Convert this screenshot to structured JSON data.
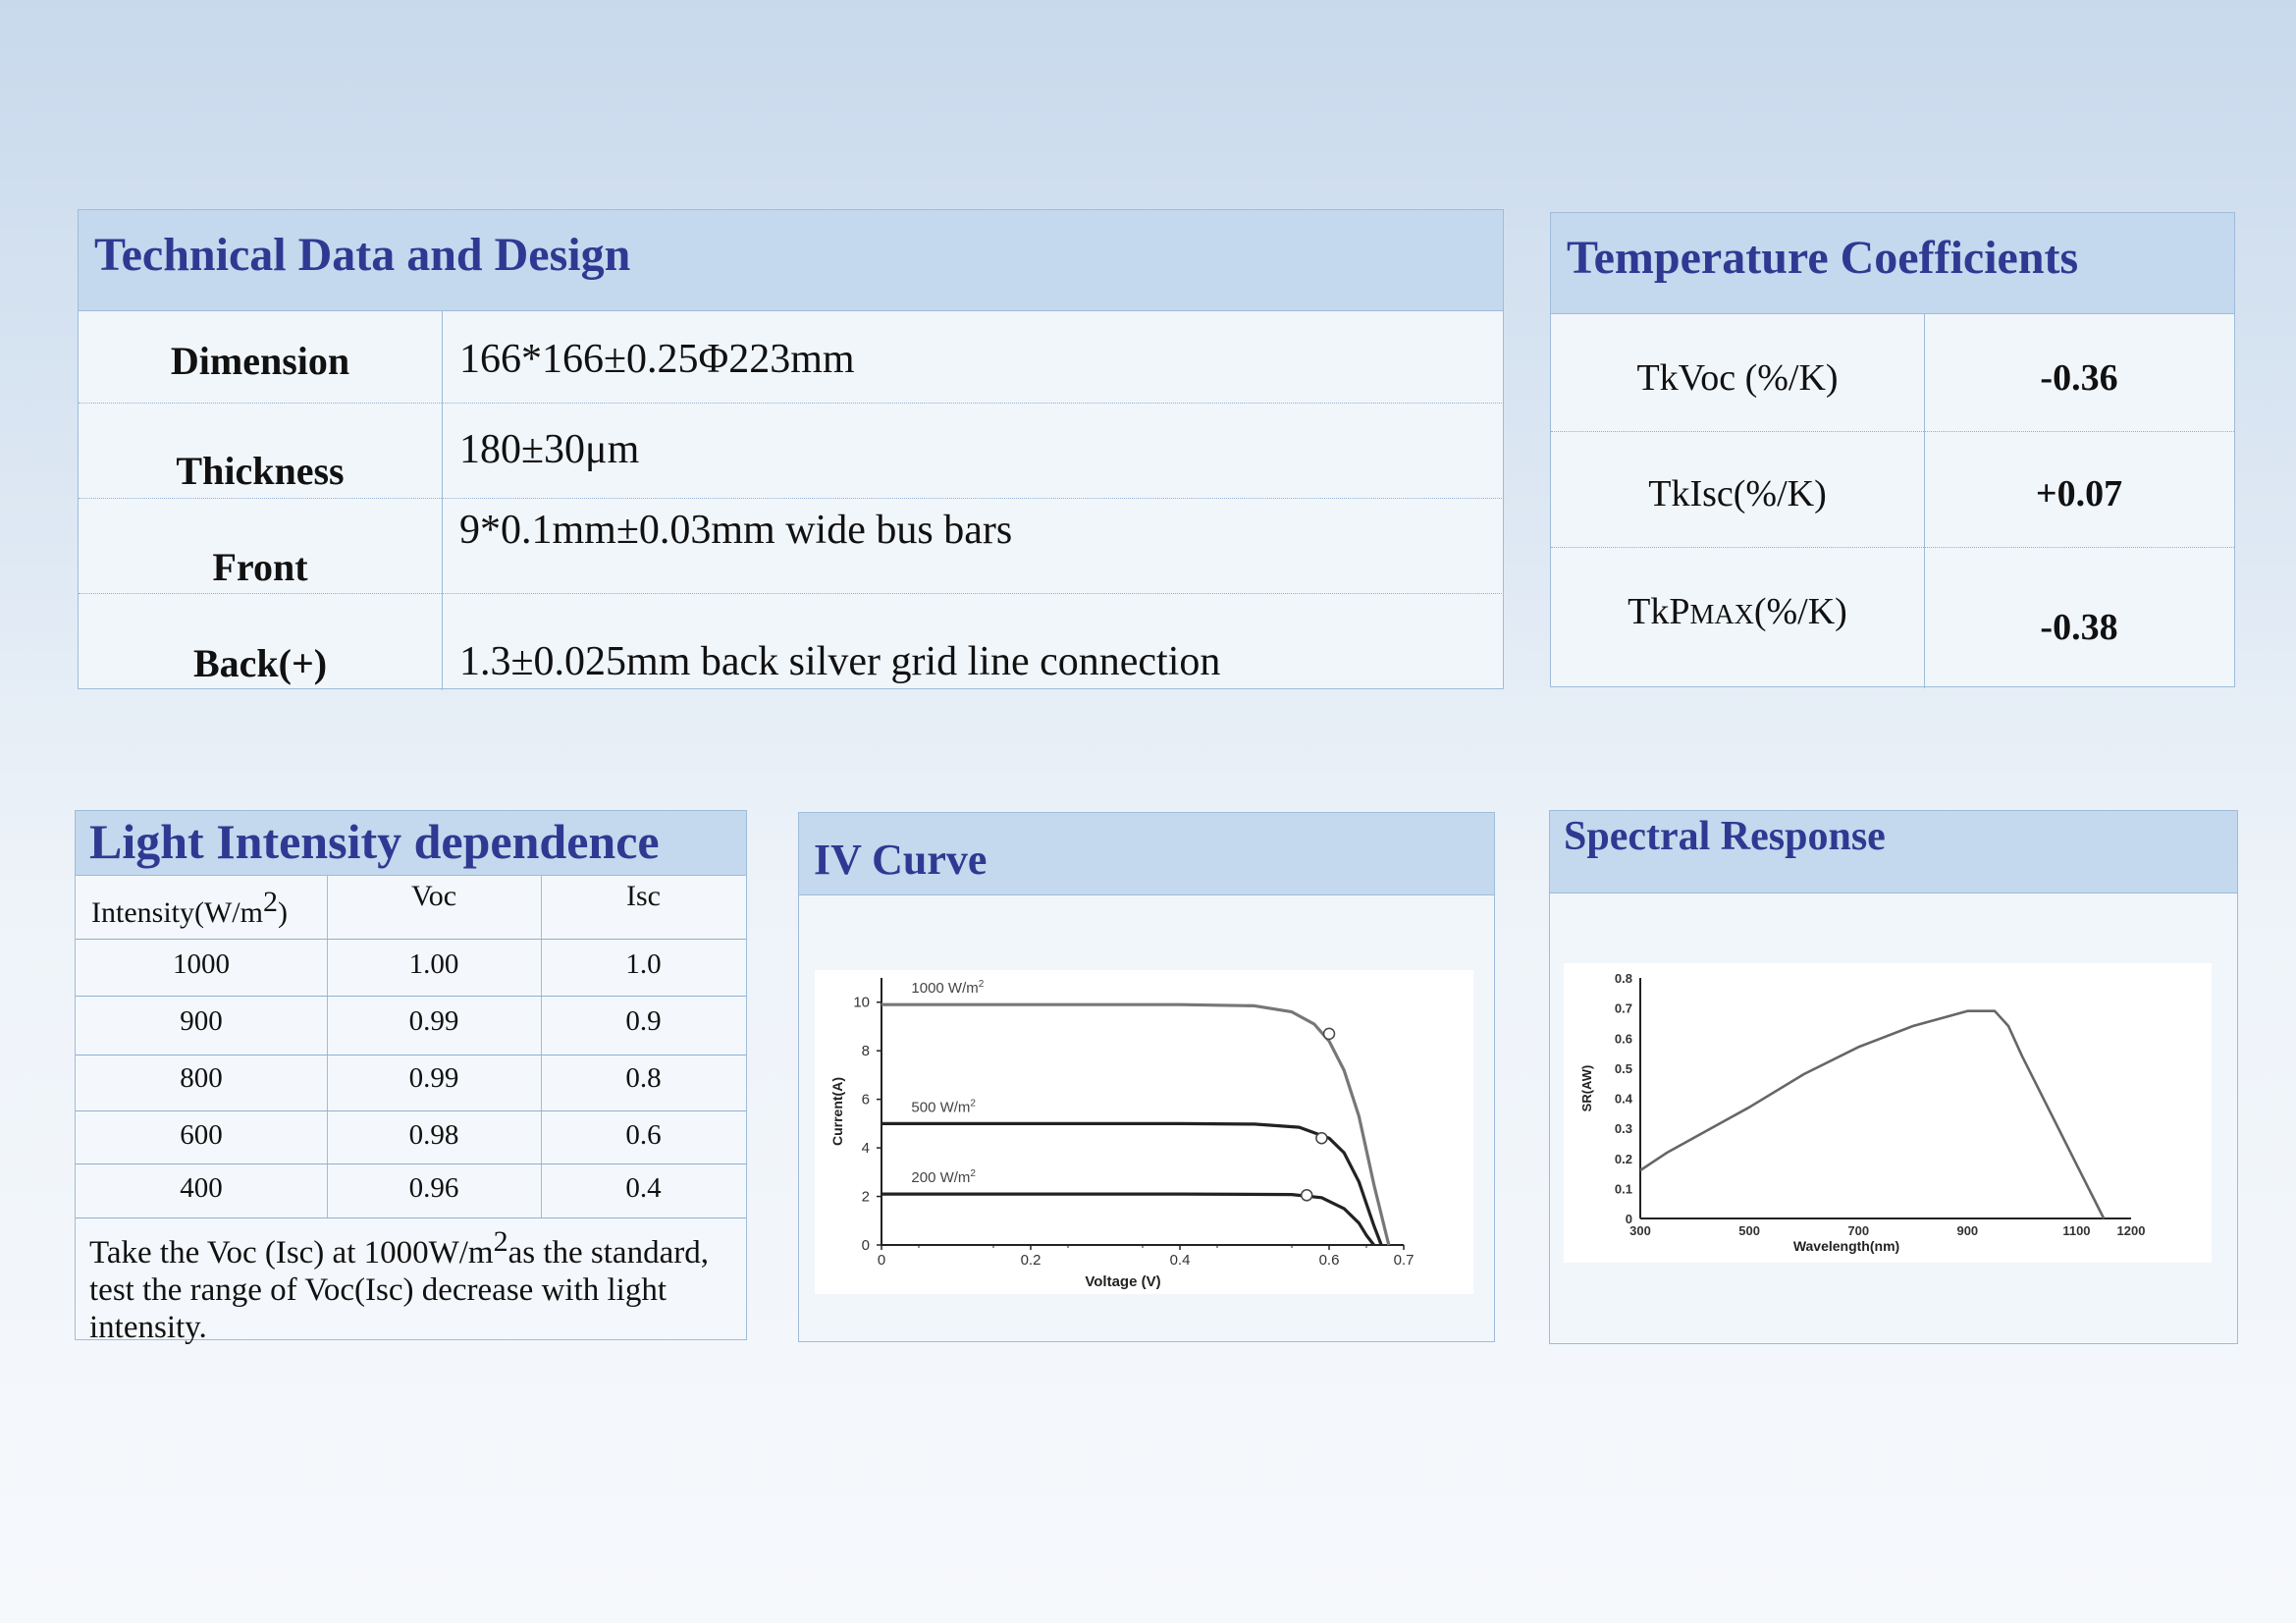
{
  "tech": {
    "title": "Technical Data and Design",
    "rows": [
      {
        "label": "Dimension",
        "value": "166*166±0.25Φ223mm"
      },
      {
        "label": "Thickness",
        "value": "180±30μm"
      },
      {
        "label": "Front",
        "value": "9*0.1mm±0.03mm wide bus bars"
      },
      {
        "label": "Back(+)",
        "value": "1.3±0.025mm back silver grid line connection"
      }
    ]
  },
  "temp": {
    "title": "Temperature Coefficients",
    "rows": [
      {
        "label": "TkVoc (%/K)",
        "value": "-0.36"
      },
      {
        "label": "TkIsc(%/K)",
        "value": "+0.07"
      },
      {
        "label_prefix": "TkP",
        "label_sub": "MAX",
        "label_suffix": "(%/K)",
        "value": "-0.38"
      }
    ]
  },
  "light": {
    "title": "Light Intensity dependence",
    "headers": {
      "intensity": "Intensity(W/m",
      "intensity_sup": "2",
      "intensity_end": ")",
      "voc": "Voc",
      "isc": "Isc"
    },
    "rows": [
      [
        "1000",
        "1.00",
        "1.0"
      ],
      [
        "900",
        "0.99",
        "0.9"
      ],
      [
        "800",
        "0.99",
        "0.8"
      ],
      [
        "600",
        "0.98",
        "0.6"
      ],
      [
        "400",
        "0.96",
        "0.4"
      ]
    ],
    "note_a": "Take the Voc (Isc) at 1000W/m",
    "note_sup": "2",
    "note_b": "as the standard, test the range of Voc(Isc) decrease with light intensity."
  },
  "iv": {
    "title": "IV Curve",
    "chart_data": {
      "type": "line",
      "xlabel": "Voltage  (V)",
      "ylabel": "Current(A)",
      "xlim": [
        0,
        0.7
      ],
      "ylim": [
        0,
        11
      ],
      "xticks": [
        {
          "v": 0,
          "label": "0"
        },
        {
          "v": 0.2,
          "label": "0.2"
        },
        {
          "v": 0.4,
          "label": "0.4"
        },
        {
          "v": 0.6,
          "label": "0.6"
        },
        {
          "v": 0.7,
          "label": "0.7"
        }
      ],
      "yticks": [
        0,
        2,
        4,
        6,
        8,
        10
      ],
      "series": [
        {
          "name": "1000  W/m",
          "name_sup": "2",
          "color": "#777777",
          "points": [
            [
              0,
              9.9
            ],
            [
              0.4,
              9.9
            ],
            [
              0.5,
              9.85
            ],
            [
              0.55,
              9.6
            ],
            [
              0.58,
              9.1
            ],
            [
              0.6,
              8.4
            ],
            [
              0.62,
              7.2
            ],
            [
              0.64,
              5.3
            ],
            [
              0.66,
              2.5
            ],
            [
              0.68,
              0
            ]
          ],
          "marker": [
            0.6,
            8.7
          ]
        },
        {
          "name": "500  W/m",
          "name_sup": "2",
          "color": "#222222",
          "points": [
            [
              0,
              5.0
            ],
            [
              0.4,
              5.0
            ],
            [
              0.5,
              4.98
            ],
            [
              0.56,
              4.85
            ],
            [
              0.6,
              4.4
            ],
            [
              0.62,
              3.8
            ],
            [
              0.64,
              2.6
            ],
            [
              0.66,
              0.8
            ],
            [
              0.67,
              0
            ]
          ],
          "marker": [
            0.59,
            4.4
          ]
        },
        {
          "name": "200  W/m",
          "name_sup": "2",
          "color": "#222222",
          "points": [
            [
              0,
              2.1
            ],
            [
              0.4,
              2.1
            ],
            [
              0.55,
              2.08
            ],
            [
              0.59,
              1.95
            ],
            [
              0.62,
              1.5
            ],
            [
              0.64,
              0.9
            ],
            [
              0.65,
              0.4
            ],
            [
              0.66,
              0
            ]
          ],
          "marker": [
            0.57,
            2.05
          ]
        }
      ]
    }
  },
  "spectral": {
    "title": "Spectral Response",
    "chart_data": {
      "type": "line",
      "xlabel": "Wavelength(nm)",
      "ylabel": "SR(AW)",
      "xlim": [
        300,
        1200
      ],
      "ylim": [
        0,
        0.8
      ],
      "xticks": [
        300,
        500,
        700,
        900,
        1100,
        1200
      ],
      "yticks": [
        "0",
        "0.1",
        "0.2",
        "0.3",
        "0.4",
        "0.5",
        "0.6",
        "0.7",
        "0.8"
      ],
      "series": [
        {
          "color": "#666666",
          "points": [
            [
              300,
              0.16
            ],
            [
              350,
              0.22
            ],
            [
              450,
              0.32
            ],
            [
              500,
              0.37
            ],
            [
              600,
              0.48
            ],
            [
              700,
              0.57
            ],
            [
              800,
              0.64
            ],
            [
              900,
              0.69
            ],
            [
              950,
              0.69
            ],
            [
              975,
              0.64
            ],
            [
              1000,
              0.54
            ],
            [
              1050,
              0.36
            ],
            [
              1100,
              0.18
            ],
            [
              1150,
              0
            ]
          ]
        }
      ]
    }
  }
}
